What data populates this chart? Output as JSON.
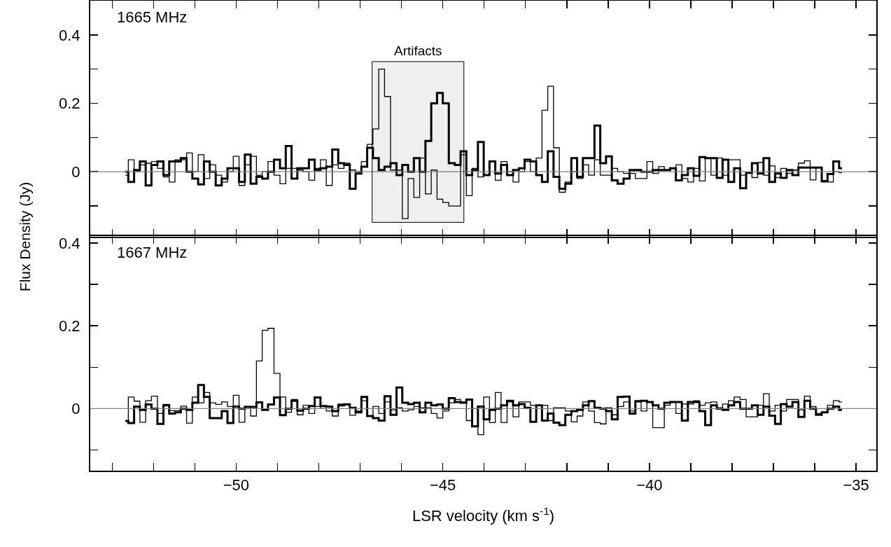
{
  "chart_data": [
    {
      "type": "step",
      "ylabel": "Flux Density (Jy)",
      "annotations": [
        "1665 MHz"
      ],
      "tick_labels": "y",
      "x": [
        -52.68,
        -52.54,
        -52.4,
        -52.26,
        -52.12,
        -51.98,
        -51.83,
        -51.69,
        -51.55,
        -51.41,
        -51.27,
        -51.13,
        -50.99,
        -50.85,
        -50.71,
        -50.57,
        -50.42,
        -50.28,
        -50.14,
        -50.0,
        -49.86,
        -49.72,
        -49.58,
        -49.44,
        -49.3,
        -49.16,
        -49.01,
        -48.87,
        -48.73,
        -48.59,
        -48.45,
        -48.31,
        -48.17,
        -48.03,
        -47.89,
        -47.75,
        -47.6,
        -47.46,
        -47.32,
        -47.18,
        -47.04,
        -46.9,
        -46.76,
        -46.62,
        -46.48,
        -46.34,
        -46.19,
        -46.05,
        -45.91,
        -45.77,
        -45.63,
        -45.49,
        -45.35,
        -45.21,
        -45.07,
        -44.93,
        -44.78,
        -44.64,
        -44.5,
        -44.36,
        -44.22,
        -44.08,
        -43.94,
        -43.8,
        -43.66,
        -43.52,
        -43.37,
        -43.23,
        -43.09,
        -42.95,
        -42.81,
        -42.67,
        -42.53,
        -42.39,
        -42.25,
        -42.11,
        -41.96,
        -41.82,
        -41.68,
        -41.54,
        -41.4,
        -41.26,
        -41.12,
        -40.98,
        -40.84,
        -40.7,
        -40.55,
        -40.41,
        -40.27,
        -40.13,
        -39.99,
        -39.85,
        -39.71,
        -39.57,
        -39.43,
        -39.29,
        -39.14,
        -39.0,
        -38.86,
        -38.72,
        -38.58,
        -38.44,
        -38.3,
        -38.16,
        -38.02,
        -37.88,
        -37.73,
        -37.59,
        -37.45,
        -37.31,
        -37.17,
        -37.03,
        -36.89,
        -36.75,
        -36.61,
        -36.47,
        -36.32,
        -36.18,
        -36.04,
        -35.9,
        -35.76,
        -35.62,
        -35.48,
        -35.34
      ],
      "series": [
        {
          "color": "#000000",
          "values": [
            0.0,
            -0.03,
            0.005,
            0.03,
            -0.04,
            0.02,
            0.03,
            -0.01,
            0.03,
            0.03,
            0.04,
            0.0,
            -0.02,
            -0.037,
            0.03,
            0.0,
            -0.04,
            -0.02,
            0.01,
            0.01,
            -0.03,
            0.05,
            -0.035,
            -0.015,
            -0.02,
            0.0,
            0.035,
            0.01,
            0.075,
            -0.02,
            0.01,
            0.01,
            0.035,
            0.005,
            0.01,
            0.015,
            0.065,
            0.025,
            0.02,
            -0.05,
            -0.005,
            0.015,
            0.07,
            0.04,
            0.005,
            0.015,
            0.025,
            -0.01,
            0.02,
            0,
            0.04,
            0,
            0.09,
            0.2,
            0.23,
            0.2,
            0.025,
            0.02,
            0.06,
            -0.01,
            0.005,
            0.087,
            -0.01,
            0.03,
            -0.005,
            0.02,
            -0.01,
            0.005,
            0.01,
            0.035,
            0.03,
            -0.01,
            -0.03,
            0.06,
            -0.015,
            -0.05,
            -0.035,
            0.04,
            -0.015,
            0.04,
            0.04,
            0.135,
            0.025,
            0.045,
            -0.025,
            -0.035,
            -0.02,
            0.005,
            0.005,
            0,
            0,
            0.005,
            0.005,
            0.005,
            0.01,
            -0.025,
            -0.01,
            0.01,
            -0.012,
            0.043,
            0.04,
            0.04,
            -0.018,
            0.035,
            -0.03,
            0.01,
            -0.048,
            -0.003,
            0.025,
            -0.005,
            0.04,
            -0.03,
            -0.005,
            -0.018,
            0.005,
            -0.01,
            0.012,
            0.012,
            0.012,
            0.012,
            -0.027,
            -0.007,
            0.03,
            0.01
          ]
        },
        {
          "color": "#000000",
          "values": [
            -0.01,
            0.035,
            0.0,
            0.02,
            0.025,
            0.03,
            0.01,
            -0.015,
            -0.03,
            0.035,
            0.035,
            0.055,
            0.0,
            0.05,
            -0.02,
            0.02,
            -0.01,
            -0.03,
            0.0,
            0.045,
            -0.04,
            0.02,
            0.045,
            -0.01,
            0.0,
            0.03,
            -0.01,
            -0.035,
            0.01,
            0.01,
            0.005,
            0.0,
            -0.025,
            0.01,
            0.035,
            -0.04,
            0.02,
            0.01,
            0.025,
            0.005,
            0.0,
            0.03,
            0.08,
            0.125,
            0.3,
            0.22,
            0.005,
            0.005,
            -0.137,
            -0.02,
            -0.075,
            0.04,
            -0.065,
            0.005,
            -0.08,
            -0.09,
            -0.1,
            -0.1,
            0.05,
            -0.07,
            0.01,
            -0.015,
            -0.01,
            0.03,
            -0.025,
            0.03,
            0,
            -0.03,
            0,
            0.03,
            0,
            0.04,
            0.18,
            0.25,
            0.07,
            -0.06,
            -0.03,
            0,
            -0.02,
            0.02,
            -0.01,
            0.035,
            -0.01,
            -0.01,
            0.01,
            0,
            -0.005,
            -0.005,
            -0.02,
            -0.02,
            0.03,
            -0.005,
            0.015,
            0.005,
            0.01,
            0.02,
            -0.02,
            -0.03,
            0.01,
            -0.027,
            0.04,
            -0.01,
            0.04,
            -0.01,
            0.035,
            0.035,
            -0.01,
            -0.003,
            -0.017,
            0.027,
            -0.01,
            0.017,
            -0.017,
            0.01,
            -0.005,
            0.005,
            0.025,
            0.032,
            -0.024,
            0.012,
            -0.03,
            -0.03,
            0.0,
            -0.003
          ]
        }
      ],
      "xlim": [
        -53.53,
        -34.51
      ],
      "xticks": [
        {
          "value": -53,
          "label": null
        },
        {
          "value": -52,
          "label": null
        },
        {
          "value": -51,
          "label": null
        },
        -50,
        {
          "value": -49,
          "label": null
        },
        {
          "value": -48,
          "label": null
        },
        {
          "value": -47,
          "label": null
        },
        {
          "value": -46,
          "label": null
        },
        -45,
        {
          "value": -44,
          "label": null
        },
        {
          "value": -43,
          "label": null
        },
        {
          "value": -42,
          "label": null
        },
        {
          "value": -41,
          "label": null
        },
        -40,
        {
          "value": -39,
          "label": null
        },
        {
          "value": -38,
          "label": null
        },
        {
          "value": -37,
          "label": null
        },
        {
          "value": -36,
          "label": null
        },
        -35
      ],
      "ylim": [
        -0.19,
        0.5
      ],
      "yticks": [
        {
          "value": -0.1,
          "label": null
        },
        0,
        {
          "value": 0.1,
          "label": null
        },
        0.2,
        {
          "value": 0.3,
          "label": null
        },
        0.4
      ],
      "ref_lines": [
        {
          "axis": "y",
          "value": 0,
          "color": "#808080"
        }
      ],
      "bands": [
        {
          "axis": "x",
          "from": -46.71,
          "to": -44.49,
          "label": "Artifacts",
          "color": "#000000"
        }
      ]
    },
    {
      "type": "step",
      "xlabel": "LSR velocity (km s$^{-1}$)",
      "annotations": [
        "1667 MHz"
      ],
      "x": [
        -52.68,
        -52.54,
        -52.4,
        -52.26,
        -52.12,
        -51.98,
        -51.83,
        -51.69,
        -51.55,
        -51.41,
        -51.27,
        -51.13,
        -50.99,
        -50.85,
        -50.71,
        -50.57,
        -50.42,
        -50.28,
        -50.14,
        -50.0,
        -49.86,
        -49.72,
        -49.58,
        -49.44,
        -49.3,
        -49.16,
        -49.01,
        -48.87,
        -48.73,
        -48.59,
        -48.45,
        -48.31,
        -48.17,
        -48.03,
        -47.89,
        -47.75,
        -47.6,
        -47.46,
        -47.32,
        -47.18,
        -47.04,
        -46.9,
        -46.76,
        -46.62,
        -46.48,
        -46.34,
        -46.19,
        -46.05,
        -45.91,
        -45.77,
        -45.63,
        -45.49,
        -45.35,
        -45.21,
        -45.07,
        -44.93,
        -44.78,
        -44.64,
        -44.5,
        -44.36,
        -44.22,
        -44.08,
        -43.94,
        -43.8,
        -43.66,
        -43.52,
        -43.37,
        -43.23,
        -43.09,
        -42.95,
        -42.81,
        -42.67,
        -42.53,
        -42.39,
        -42.25,
        -42.11,
        -41.96,
        -41.82,
        -41.68,
        -41.54,
        -41.4,
        -41.26,
        -41.12,
        -40.98,
        -40.84,
        -40.7,
        -40.55,
        -40.41,
        -40.27,
        -40.13,
        -39.99,
        -39.85,
        -39.71,
        -39.57,
        -39.43,
        -39.29,
        -39.14,
        -39.0,
        -38.86,
        -38.72,
        -38.58,
        -38.44,
        -38.3,
        -38.16,
        -38.02,
        -37.88,
        -37.73,
        -37.59,
        -37.45,
        -37.31,
        -37.17,
        -37.03,
        -36.89,
        -36.75,
        -36.61,
        -36.47,
        -36.32,
        -36.18,
        -36.04,
        -35.9,
        -35.76,
        -35.62,
        -35.48,
        -35.34
      ],
      "series": [
        {
          "color": "#000000",
          "values": [
            -0.03,
            -0.035,
            0.005,
            -0.003,
            0.01,
            0.0,
            -0.037,
            0.008,
            -0.012,
            -0.009,
            0.0,
            -0.003,
            0.014,
            0.057,
            0.028,
            -0.023,
            -0.023,
            -0.006,
            -0.035,
            0.005,
            0.0,
            0.004,
            0.004,
            0.015,
            -0.003,
            0.01,
            0.027,
            -0.016,
            0.0,
            0.019,
            -0.005,
            0.0,
            0.006,
            0.027,
            0.006,
            0.005,
            -0.006,
            0.008,
            0.01,
            0.002,
            -0.009,
            0.028,
            -0.018,
            -0.023,
            -0.029,
            0.03,
            -0.015,
            0.051,
            0.014,
            0.011,
            0.014,
            -0.009,
            0.014,
            0.008,
            0.01,
            0.0,
            0.025,
            0.016,
            0.014,
            0.022,
            -0.043,
            0.005,
            -0.026,
            -0.003,
            0.0,
            0.008,
            0.019,
            0.008,
            0.011,
            0.002,
            -0.032,
            0.008,
            -0.029,
            -0.012,
            -0.034,
            -0.04,
            -0.015,
            -0.006,
            -0.003,
            0.008,
            0.018,
            0.002,
            0.0,
            -0.006,
            -0.026,
            0.028,
            0.029,
            -0.012,
            0.018,
            0.019,
            0.016,
            0.008,
            0.0,
            0.014,
            0.016,
            0.016,
            -0.029,
            0.016,
            0.016,
            -0.006,
            -0.04,
            0.008,
            0.0,
            -0.003,
            0.008,
            0.016,
            0.0,
            0.0,
            0.008,
            -0.015,
            0.005,
            -0.017,
            -0.037,
            0.011,
            0.005,
            0.016,
            -0.02,
            0.019,
            0.0,
            -0.015,
            -0.009,
            0.0,
            0.005,
            -0.003
          ]
        },
        {
          "color": "#000000",
          "values": [
            -0.03,
            0.028,
            0.018,
            -0.033,
            0.019,
            0.03,
            -0.012,
            0.01,
            -0.005,
            -0.005,
            0.006,
            -0.035,
            0.028,
            0.014,
            0.039,
            0.014,
            0.01,
            0.016,
            0.005,
            0.032,
            -0.033,
            0.005,
            -0.018,
            0.115,
            0.189,
            0.194,
            0.085,
            0.028,
            -0.009,
            0.022,
            -0.015,
            0.008,
            -0.012,
            0.005,
            0.0,
            -0.006,
            -0.018,
            0.011,
            0.012,
            -0.016,
            -0.006,
            0.019,
            -0.018,
            0.005,
            -0.012,
            0.016,
            -0.003,
            0.002,
            -0.006,
            -0.003,
            0.005,
            0.002,
            0.002,
            -0.012,
            -0.023,
            -0.006,
            0.014,
            0.022,
            0.016,
            -0.029,
            0.0,
            -0.063,
            0.028,
            -0.034,
            0.039,
            -0.034,
            0.016,
            -0.02,
            0.016,
            0.016,
            0.008,
            0.008,
            0.008,
            -0.029,
            0.002,
            0.002,
            -0.006,
            -0.032,
            -0.018,
            0.016,
            -0.006,
            -0.034,
            -0.037,
            0.002,
            -0.015,
            0.005,
            0.016,
            -0.006,
            0.016,
            -0.006,
            0.016,
            -0.046,
            -0.046,
            0.008,
            0.016,
            -0.012,
            0.011,
            0.011,
            0.019,
            0.008,
            0.014,
            0.016,
            0.002,
            0.011,
            0.019,
            0.028,
            0.022,
            -0.02,
            -0.02,
            0.008,
            0.036,
            -0.006,
            0.008,
            -0.006,
            0.022,
            0.022,
            -0.003,
            0.03,
            0.005,
            -0.012,
            -0.009,
            0.008,
            0.019,
            0.016
          ]
        }
      ],
      "xlim": [
        -53.53,
        -34.51
      ],
      "xticks": [
        {
          "value": -53,
          "label": null
        },
        {
          "value": -52,
          "label": null
        },
        {
          "value": -51,
          "label": null
        },
        -50,
        {
          "value": -49,
          "label": null
        },
        {
          "value": -48,
          "label": null
        },
        {
          "value": -47,
          "label": null
        },
        {
          "value": -46,
          "label": null
        },
        -45,
        {
          "value": -44,
          "label": null
        },
        {
          "value": -43,
          "label": null
        },
        {
          "value": -42,
          "label": null
        },
        {
          "value": -41,
          "label": null
        },
        -40,
        {
          "value": -39,
          "label": null
        },
        {
          "value": -38,
          "label": null
        },
        {
          "value": -37,
          "label": null
        },
        {
          "value": -36,
          "label": null
        },
        -35
      ],
      "ylim": [
        -0.15,
        0.417
      ],
      "yticks": [
        {
          "value": -0.1,
          "label": null
        },
        0,
        {
          "value": 0.1,
          "label": null
        },
        0.2,
        {
          "value": 0.3,
          "label": null
        },
        0.4
      ],
      "ref_lines": [
        {
          "axis": "y",
          "value": 0,
          "color": "#808080"
        }
      ]
    }
  ]
}
